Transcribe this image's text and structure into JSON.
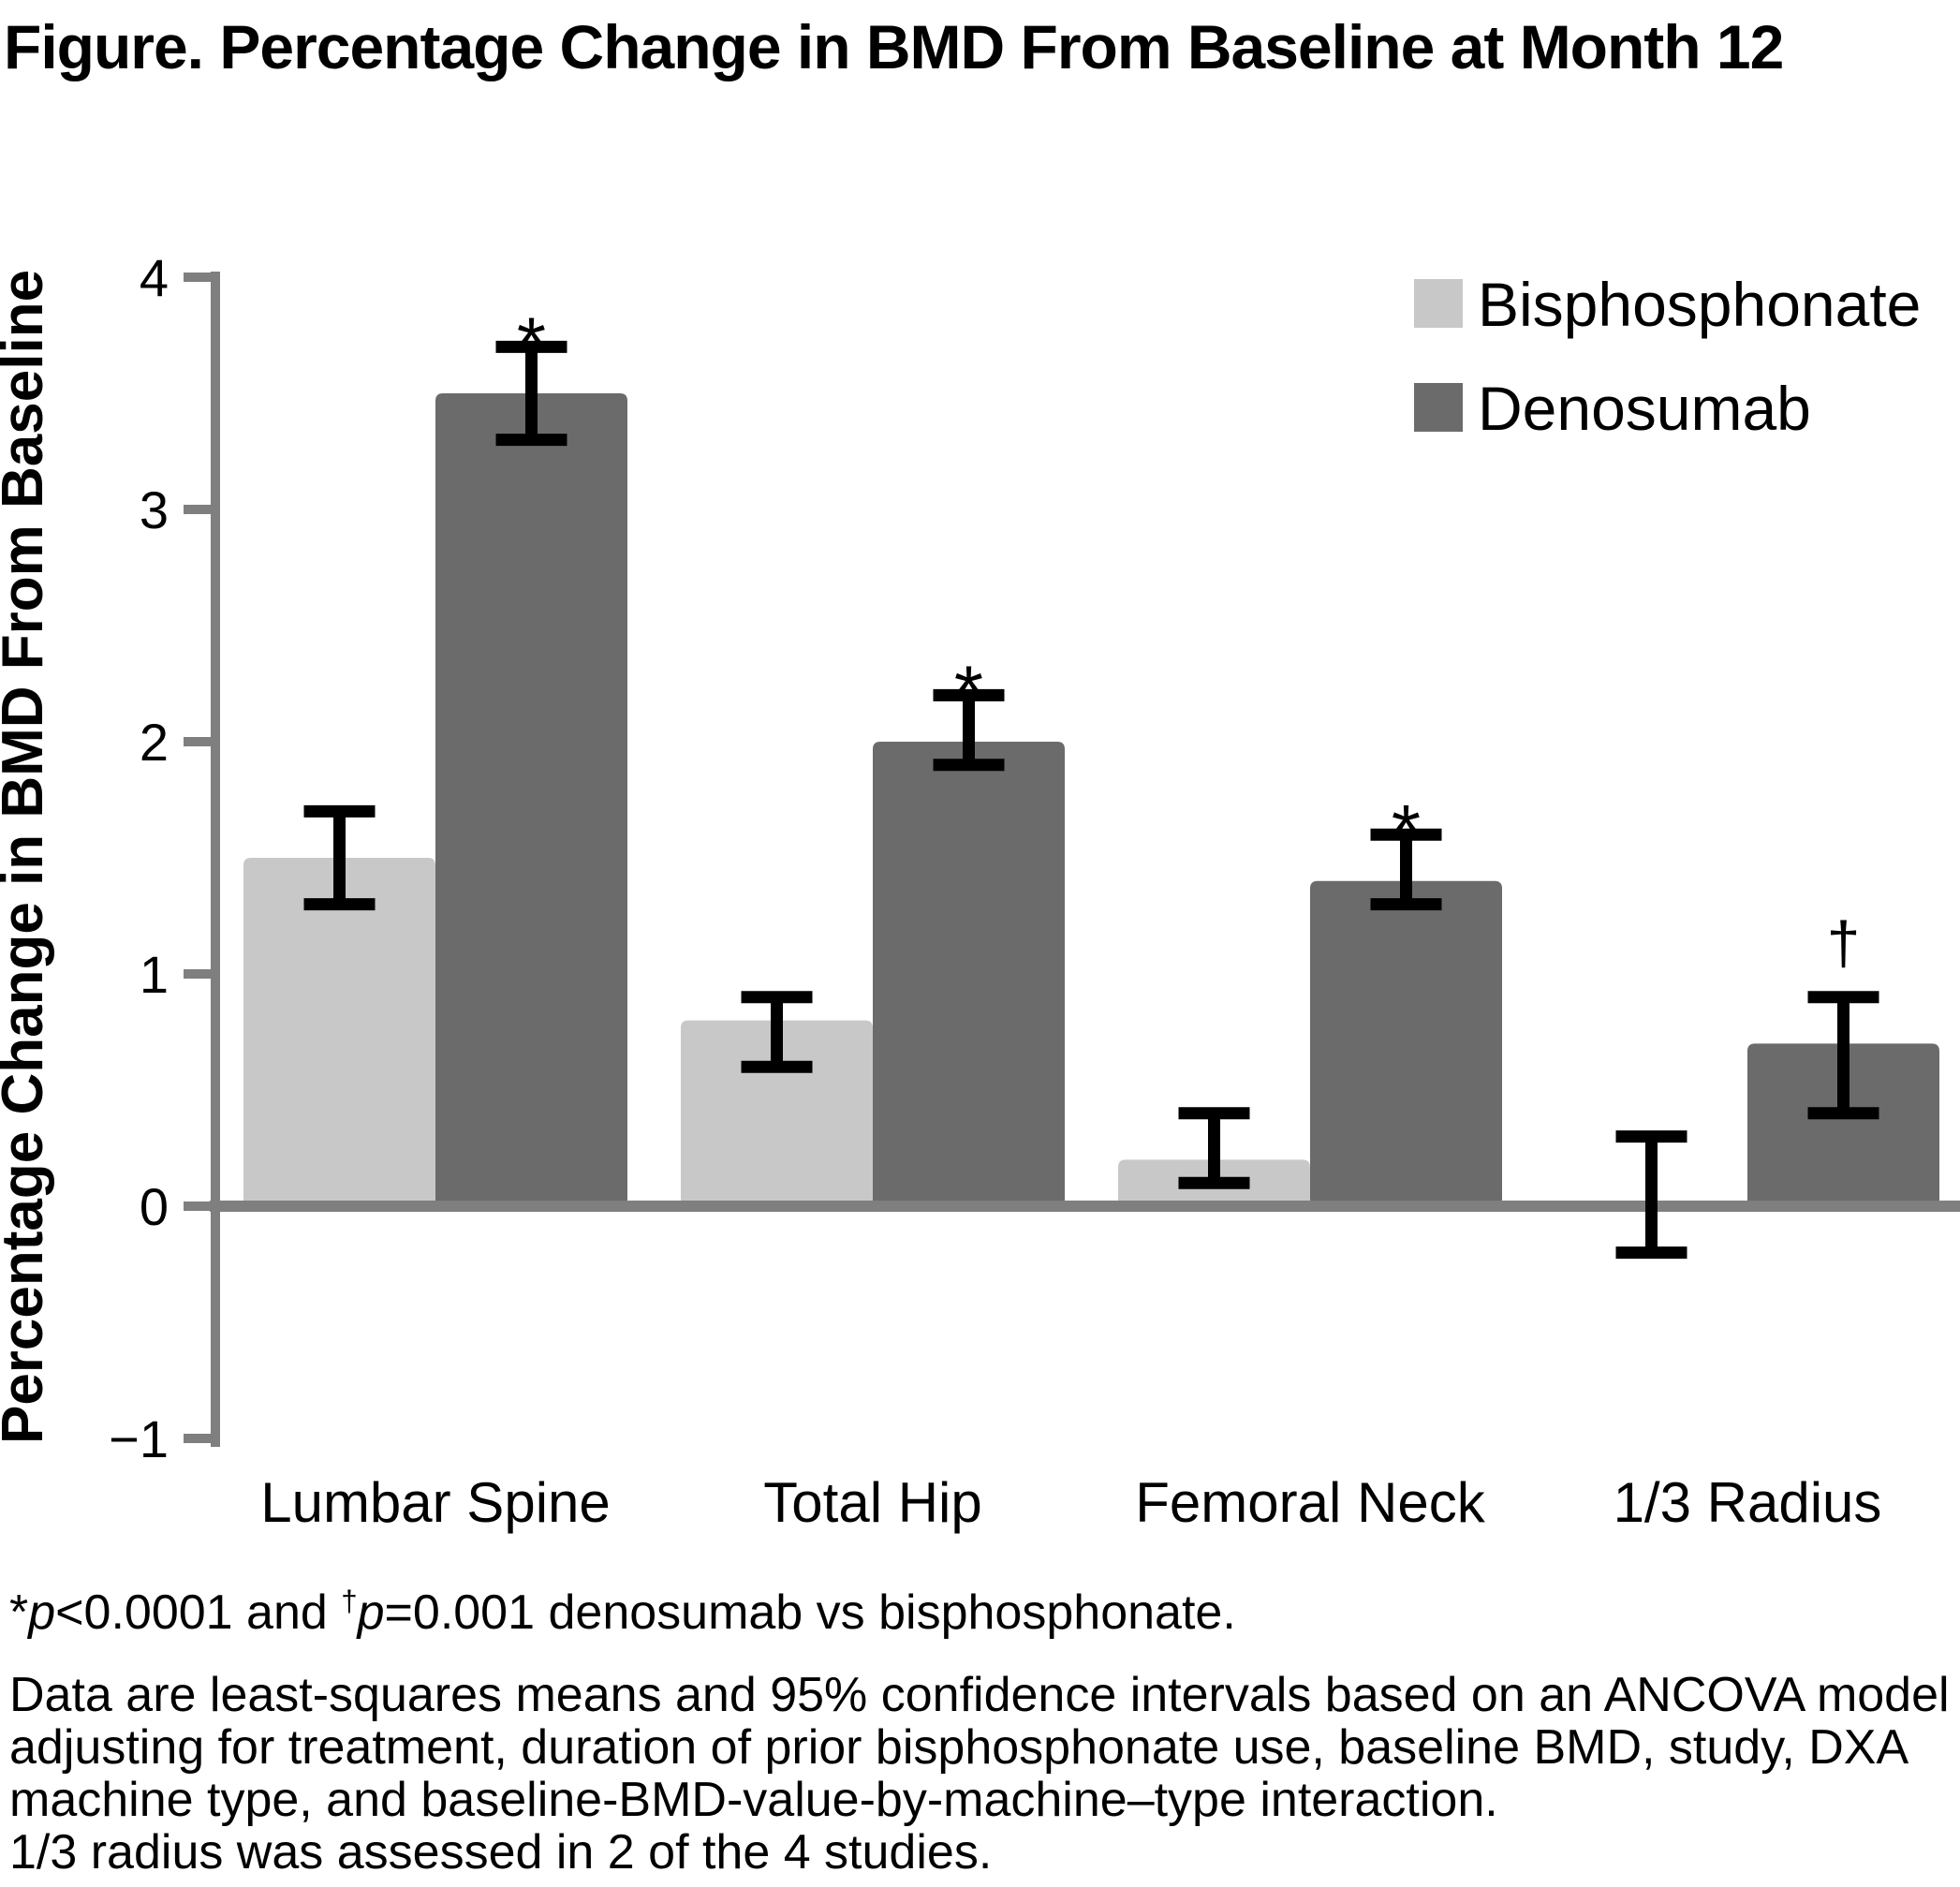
{
  "figure": {
    "title": "Figure. Percentage Change in BMD From Baseline at Month 12"
  },
  "chart_data": {
    "type": "bar",
    "title": "Figure. Percentage Change in BMD From Baseline at Month 12",
    "categories": [
      "Lumbar Spine",
      "Total Hip",
      "Femoral Neck",
      "1/3 Radius"
    ],
    "series": [
      {
        "name": "Bisphosphonate",
        "color": "#c8c8c8",
        "values": [
          1.5,
          0.8,
          0.2,
          0.0
        ],
        "ci_low": [
          1.3,
          0.6,
          0.1,
          -0.2
        ],
        "ci_high": [
          1.7,
          0.9,
          0.4,
          0.3
        ],
        "annotations": [
          "",
          "",
          "",
          ""
        ]
      },
      {
        "name": "Denosumab",
        "color": "#6b6b6b",
        "values": [
          3.5,
          2.0,
          1.4,
          0.7
        ],
        "ci_low": [
          3.3,
          1.9,
          1.3,
          0.4
        ],
        "ci_high": [
          3.7,
          2.2,
          1.6,
          0.9
        ],
        "annotations": [
          "*",
          "*",
          "*",
          "†"
        ]
      }
    ],
    "xlabel": "",
    "ylabel": "Percentage Change in BMD From Baseline",
    "ylim": [
      -1,
      4
    ],
    "yticks": [
      4,
      3,
      2,
      1,
      0,
      -1
    ],
    "grid": false,
    "legend_position": "top-right",
    "axis_color": "#7f7f7f",
    "error_bar_color": "#000000",
    "annotation_meanings": {
      "*": "p<0.0001 denosumab vs bisphosphonate",
      "†": "p=0.001 denosumab vs bisphosphonate"
    }
  },
  "footnotes": {
    "significance": {
      "segments": [
        {
          "t": "*"
        },
        {
          "t": "p",
          "i": true
        },
        {
          "t": "<0.0001 and "
        },
        {
          "t": "†",
          "sup": true
        },
        {
          "t": "p",
          "i": true
        },
        {
          "t": "=0.001 denosumab vs bisphosphonate."
        }
      ]
    },
    "body_lines": [
      "Data are least-squares means and 95% confidence intervals based on an ANCOVA model",
      "adjusting for treatment, duration of prior bisphosphonate use, baseline BMD, study, DXA",
      "machine type, and baseline-BMD-value-by-machine–type interaction.",
      "1/3 radius was assessed in 2 of the 4 studies."
    ]
  }
}
